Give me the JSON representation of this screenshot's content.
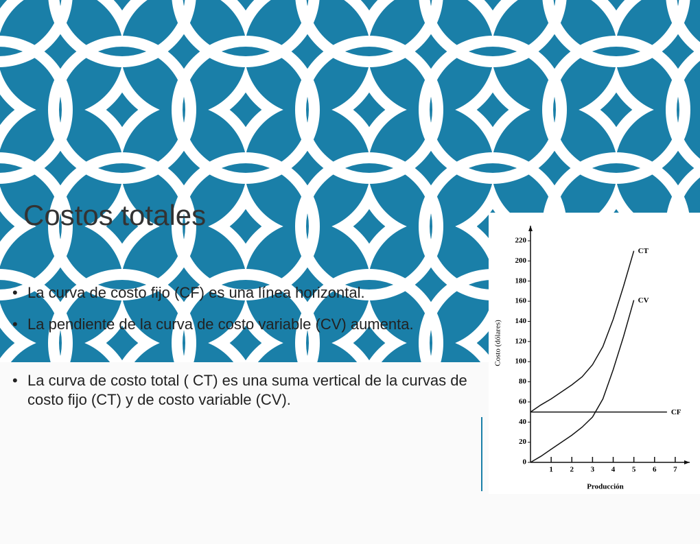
{
  "slide": {
    "title": "Costos totales",
    "bullets": [
      "La curva de costo fijo (CF) es una línea horizontal.",
      "La pendiente de la curva de costo variable (CV) aumenta.",
      "La curva de costo total ( CT) es una suma vertical de la curvas de costo fijo (CT) y de costo variable (CV)."
    ]
  },
  "chart_data": {
    "type": "line",
    "x_label": "Producción",
    "y_label": "Costo (dólares)",
    "xlim": [
      0,
      7.7
    ],
    "ylim": [
      0,
      235
    ],
    "xticks": [
      1,
      2,
      3,
      4,
      5,
      6,
      7
    ],
    "yticks": [
      0,
      20,
      40,
      60,
      80,
      100,
      120,
      140,
      160,
      180,
      200,
      220
    ],
    "color": "#111111",
    "series": [
      {
        "name": "CT",
        "x": [
          0,
          0.5,
          1,
          1.5,
          2,
          2.5,
          3,
          3.5,
          4,
          4.5,
          5
        ],
        "values": [
          50,
          57,
          63,
          70,
          77,
          85,
          97,
          115,
          142,
          175,
          210
        ]
      },
      {
        "name": "CV",
        "x": [
          0,
          0.5,
          1,
          1.5,
          2,
          2.5,
          3,
          3.5,
          4,
          4.5,
          5
        ],
        "values": [
          0,
          6,
          13,
          20,
          27,
          35,
          45,
          63,
          92,
          125,
          161
        ]
      },
      {
        "name": "CF",
        "x": [
          0,
          6.6
        ],
        "values": [
          50,
          50
        ]
      }
    ]
  }
}
